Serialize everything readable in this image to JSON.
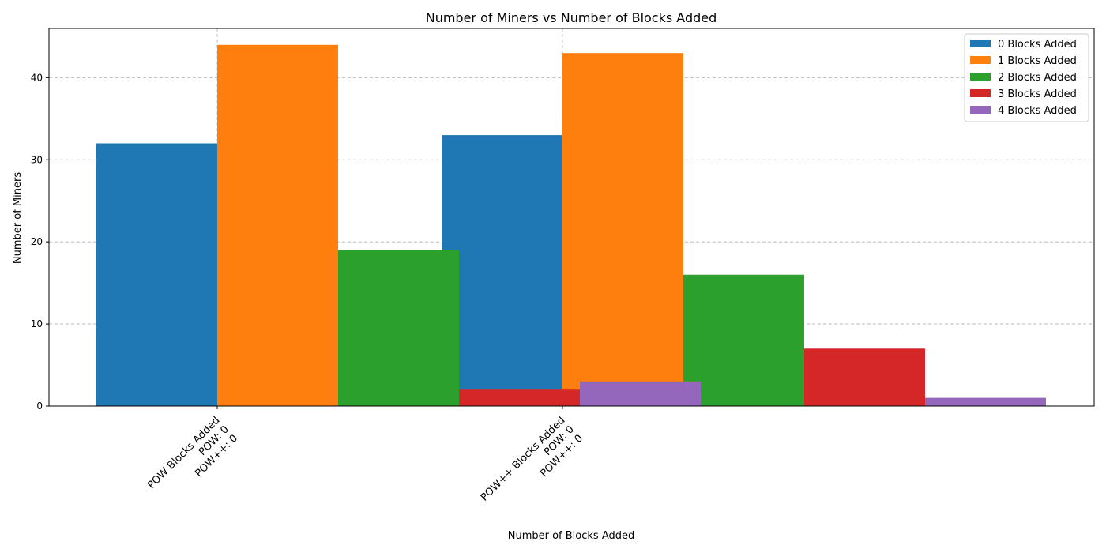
{
  "chart_data": {
    "type": "bar",
    "title": "Number of Miners vs Number of Blocks Added",
    "xlabel": "Number of Blocks Added",
    "ylabel": "Number of Miners",
    "ylim": [
      0,
      46
    ],
    "yticks": [
      0,
      10,
      20,
      30,
      40
    ],
    "grid": true,
    "legend_position": "top-right",
    "groups": [
      {
        "lines": [
          "POW Blocks Added",
          "POW: 0",
          "POW++: 0"
        ]
      },
      {
        "lines": [
          "POW++ Blocks Added",
          "POW: 0",
          "POW++: 0"
        ]
      }
    ],
    "series": [
      {
        "name": "0 Blocks Added",
        "color": "#1f77b4",
        "values": [
          32,
          33
        ]
      },
      {
        "name": "1 Blocks Added",
        "color": "#ff7f0e",
        "values": [
          44,
          43
        ]
      },
      {
        "name": "2 Blocks Added",
        "color": "#2ca02c",
        "values": [
          19,
          16
        ]
      },
      {
        "name": "3 Blocks Added",
        "color": "#d62728",
        "values": [
          2,
          7
        ]
      },
      {
        "name": "4 Blocks Added",
        "color": "#9467bd",
        "values": [
          3,
          1
        ]
      }
    ]
  }
}
